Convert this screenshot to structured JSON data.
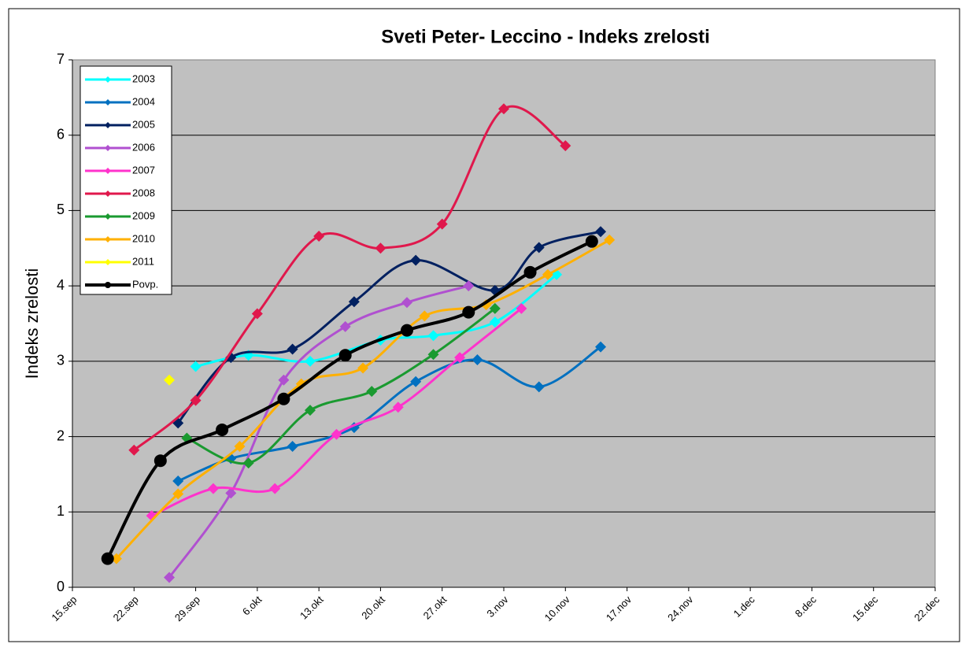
{
  "chart_data": {
    "type": "line",
    "title": "Sveti Peter- Leccino - Indeks zrelosti",
    "y_label": "Indeks zrelosti",
    "xlim": [
      258,
      356
    ],
    "xticks": [
      {
        "value": 258,
        "label": "15.sep"
      },
      {
        "value": 265,
        "label": "22.sep"
      },
      {
        "value": 272,
        "label": "29.sep"
      },
      {
        "value": 279,
        "label": "6.okt"
      },
      {
        "value": 286,
        "label": "13.okt"
      },
      {
        "value": 293,
        "label": "20.okt"
      },
      {
        "value": 300,
        "label": "27.okt"
      },
      {
        "value": 307,
        "label": "3.nov"
      },
      {
        "value": 314,
        "label": "10.nov"
      },
      {
        "value": 321,
        "label": "17.nov"
      },
      {
        "value": 328,
        "label": "24.nov"
      },
      {
        "value": 335,
        "label": "1.dec"
      },
      {
        "value": 342,
        "label": "8.dec"
      },
      {
        "value": 349,
        "label": "15.dec"
      },
      {
        "value": 356,
        "label": "22.dec"
      }
    ],
    "ylim": [
      0,
      7
    ],
    "yticks": [
      0,
      1,
      2,
      3,
      4,
      5,
      6,
      7
    ],
    "grid": true,
    "legend": "top-left",
    "series": [
      {
        "name": "2003",
        "color": "#00ffff",
        "x": [
          272,
          278,
          285,
          293,
          299,
          306,
          313
        ],
        "values": [
          2.93,
          3.08,
          3.0,
          3.28,
          3.34,
          3.52,
          4.15
        ]
      },
      {
        "name": "2004",
        "color": "#0070c0",
        "x": [
          270,
          276,
          283,
          290,
          297,
          304,
          311,
          318
        ],
        "values": [
          1.41,
          1.71,
          1.87,
          2.12,
          2.73,
          3.02,
          2.66,
          3.19
        ]
      },
      {
        "name": "2005",
        "color": "#002060",
        "x": [
          270,
          276,
          283,
          290,
          297,
          306,
          311,
          318
        ],
        "values": [
          2.18,
          3.05,
          3.16,
          3.79,
          4.34,
          3.94,
          4.51,
          4.72
        ]
      },
      {
        "name": "2006",
        "color": "#b050d0",
        "x": [
          269,
          276,
          282,
          289,
          296,
          303
        ],
        "values": [
          0.13,
          1.25,
          2.75,
          3.46,
          3.78,
          4.0
        ]
      },
      {
        "name": "2007",
        "color": "#ff33cc",
        "x": [
          267,
          274,
          281,
          288,
          295,
          302,
          309
        ],
        "values": [
          0.95,
          1.31,
          1.31,
          2.03,
          2.39,
          3.05,
          3.7
        ]
      },
      {
        "name": "2008",
        "color": "#e0184c",
        "x": [
          265,
          272,
          279,
          286,
          293,
          300,
          307,
          314
        ],
        "values": [
          1.82,
          2.48,
          3.63,
          4.66,
          4.5,
          4.82,
          6.35,
          5.86
        ]
      },
      {
        "name": "2009",
        "color": "#1a9a30",
        "x": [
          271,
          278,
          285,
          292,
          299,
          306
        ],
        "values": [
          1.98,
          1.65,
          2.35,
          2.6,
          3.09,
          3.7
        ]
      },
      {
        "name": "2010",
        "color": "#ffb000",
        "x": [
          263,
          270,
          277,
          284,
          291,
          298,
          305,
          312,
          319
        ],
        "values": [
          0.38,
          1.24,
          1.87,
          2.7,
          2.91,
          3.6,
          3.75,
          4.15,
          4.61
        ]
      },
      {
        "name": "2011",
        "color": "#ffff00",
        "x": [
          269
        ],
        "values": [
          2.75
        ]
      },
      {
        "name": "Povp.",
        "color": "#000000",
        "x": [
          262,
          268,
          275,
          282,
          289,
          296,
          303,
          310,
          317
        ],
        "values": [
          0.38,
          1.68,
          2.09,
          2.5,
          3.08,
          3.41,
          3.65,
          4.18,
          4.59
        ]
      }
    ]
  }
}
